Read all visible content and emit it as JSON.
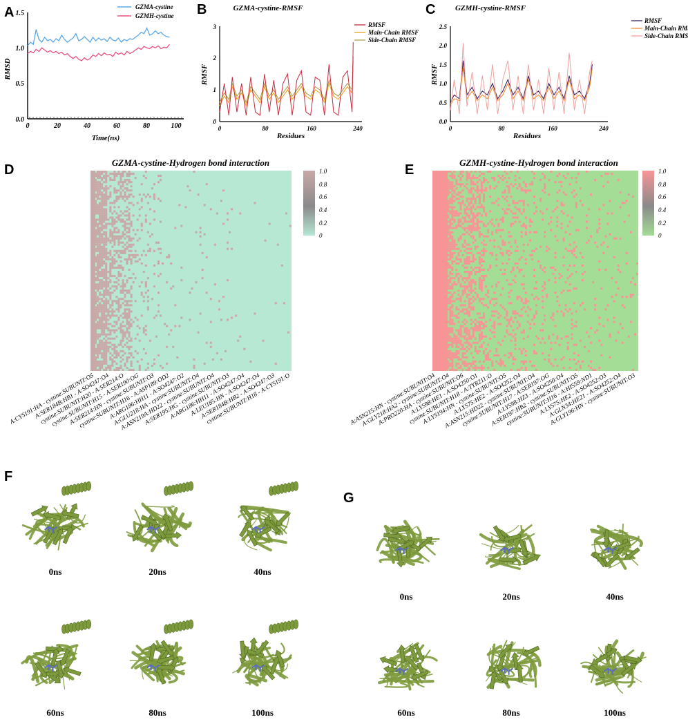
{
  "panels": {
    "A": "A",
    "B": "B",
    "C": "C",
    "D": "D",
    "E": "E",
    "F": "F",
    "G": "G"
  },
  "colors": {
    "gzma_line": "#5aa8e8",
    "gzmh_line": "#e8507e",
    "rmsf_b": "#c8283c",
    "main_b": "#f0a020",
    "side_b": "#b0a050",
    "rmsf_c": "#3a2060",
    "main_c": "#f09030",
    "side_c": "#f0a0a0",
    "hb_d_on": "#c9a8a8",
    "hb_d_off": "#b6e8d4",
    "hb_e_on": "#f79596",
    "hb_e_off": "#a4dd96",
    "protein": "#7d9a3c",
    "ligand": "#5c6cc4"
  },
  "chart_data": [
    {
      "id": "A",
      "type": "line",
      "title": "",
      "xlabel": "Time(ns)",
      "ylabel": "RMSD",
      "xlim": [
        0,
        110
      ],
      "ylim": [
        0,
        1.5
      ],
      "xticks": [
        "0",
        "20",
        "40",
        "60",
        "80",
        "100"
      ],
      "yticks": [
        "0.0",
        "0.5",
        "1.0",
        "1.5"
      ],
      "legend": [
        "GZMA-cystine",
        "GZMH-cystine"
      ],
      "series": [
        {
          "name": "GZMA-cystine",
          "x": [
            0,
            2,
            4,
            6,
            8,
            10,
            12,
            14,
            16,
            18,
            20,
            22,
            24,
            26,
            28,
            30,
            32,
            34,
            36,
            38,
            40,
            42,
            44,
            46,
            48,
            50,
            52,
            54,
            56,
            58,
            60,
            62,
            64,
            66,
            68,
            70,
            72,
            74,
            76,
            78,
            80,
            82,
            84,
            86,
            88,
            90,
            92,
            94,
            96,
            98,
            100
          ],
          "values": [
            1.03,
            1.08,
            1.05,
            1.26,
            1.12,
            1.08,
            1.15,
            1.1,
            1.12,
            1.08,
            1.13,
            1.1,
            1.18,
            1.12,
            1.08,
            1.11,
            1.14,
            1.2,
            1.1,
            1.12,
            1.16,
            1.12,
            1.08,
            1.15,
            1.1,
            1.14,
            1.11,
            1.13,
            1.09,
            1.15,
            1.11,
            1.1,
            1.14,
            1.08,
            1.12,
            1.1,
            1.13,
            1.12,
            1.15,
            1.18,
            1.22,
            1.2,
            1.28,
            1.18,
            1.2,
            1.24,
            1.2,
            1.22,
            1.18,
            1.16,
            1.15
          ]
        },
        {
          "name": "GZMH-cystine",
          "x": [
            0,
            2,
            4,
            6,
            8,
            10,
            12,
            14,
            16,
            18,
            20,
            22,
            24,
            26,
            28,
            30,
            32,
            34,
            36,
            38,
            40,
            42,
            44,
            46,
            48,
            50,
            52,
            54,
            56,
            58,
            60,
            62,
            64,
            66,
            68,
            70,
            72,
            74,
            76,
            78,
            80,
            82,
            84,
            86,
            88,
            90,
            92,
            94,
            96,
            98,
            100
          ],
          "values": [
            0.92,
            0.95,
            0.93,
            0.98,
            0.95,
            1.0,
            0.97,
            0.94,
            0.96,
            0.93,
            0.95,
            0.92,
            0.94,
            0.9,
            0.92,
            0.88,
            0.85,
            0.88,
            0.84,
            0.82,
            0.86,
            0.83,
            0.85,
            0.9,
            0.88,
            0.92,
            0.89,
            0.93,
            0.9,
            0.91,
            0.88,
            0.94,
            0.91,
            0.93,
            0.9,
            0.95,
            0.92,
            0.94,
            0.97,
            1.0,
            0.98,
            1.02,
            1.0,
            0.99,
            1.02,
            1.0,
            1.03,
            0.99,
            1.01,
            1.0,
            1.05
          ]
        }
      ]
    },
    {
      "id": "B",
      "type": "line",
      "title": "GZMA-cystine-RMSF",
      "xlabel": "Residues",
      "ylabel": "RMSF",
      "xlim": [
        0,
        240
      ],
      "ylim": [
        0,
        3
      ],
      "xticks": [
        "0",
        "80",
        "160",
        "240"
      ],
      "yticks": [
        "0",
        "1",
        "2",
        "3"
      ],
      "legend": [
        "RMSF",
        "Main-Chain RMSF",
        "Side-Chain RMSF"
      ],
      "series": [
        {
          "name": "RMSF",
          "x": [
            0,
            8,
            16,
            22,
            30,
            38,
            46,
            54,
            62,
            70,
            78,
            86,
            94,
            102,
            110,
            118,
            126,
            134,
            142,
            150,
            158,
            166,
            174,
            182,
            190,
            198,
            206,
            214,
            222,
            230,
            232
          ],
          "values": [
            0.6,
            0.9,
            0.7,
            1.2,
            0.8,
            1.0,
            0.6,
            1.1,
            0.9,
            0.7,
            1.2,
            0.8,
            1.0,
            0.7,
            0.9,
            1.1,
            0.8,
            1.0,
            1.2,
            0.9,
            0.8,
            1.1,
            1.0,
            0.7,
            1.3,
            0.9,
            0.8,
            1.0,
            1.2,
            1.0,
            2.05
          ]
        },
        {
          "name": "Main-Chain RMSF",
          "x": [
            0,
            8,
            16,
            22,
            30,
            38,
            46,
            54,
            62,
            70,
            78,
            86,
            94,
            102,
            110,
            118,
            126,
            134,
            142,
            150,
            158,
            166,
            174,
            182,
            190,
            198,
            206,
            214,
            222,
            230,
            232
          ],
          "values": [
            0.5,
            0.8,
            0.6,
            1.1,
            0.7,
            0.9,
            0.5,
            1.0,
            0.8,
            0.6,
            1.1,
            0.7,
            0.9,
            0.6,
            0.8,
            1.0,
            0.7,
            0.9,
            1.1,
            0.8,
            0.7,
            1.0,
            0.9,
            0.6,
            1.2,
            0.8,
            0.7,
            0.9,
            1.1,
            0.9,
            1.9
          ]
        },
        {
          "name": "Side-Chain RMSF",
          "x": [
            0,
            8,
            16,
            22,
            30,
            38,
            46,
            54,
            62,
            70,
            78,
            86,
            94,
            102,
            110,
            118,
            126,
            134,
            142,
            150,
            158,
            166,
            174,
            182,
            190,
            198,
            206,
            214,
            222,
            230,
            232
          ],
          "values": [
            0.3,
            1.2,
            0.2,
            1.4,
            0.3,
            1.2,
            0.2,
            1.4,
            0.3,
            0.2,
            1.5,
            0.3,
            1.3,
            0.2,
            1.2,
            1.5,
            0.2,
            1.3,
            1.6,
            0.3,
            0.2,
            1.4,
            1.3,
            0.2,
            1.8,
            0.3,
            0.2,
            1.4,
            1.6,
            0.3,
            2.5
          ]
        }
      ]
    },
    {
      "id": "C",
      "type": "line",
      "title": "GZMH-cystine-RMSF",
      "xlabel": "Residues",
      "ylabel": "RMSF",
      "xlim": [
        0,
        240
      ],
      "ylim": [
        0,
        2.5
      ],
      "xticks": [
        "0",
        "80",
        "160",
        "240"
      ],
      "yticks": [
        "0.0",
        "0.5",
        "1.0",
        "1.5",
        "2.0",
        "2.5"
      ],
      "legend": [
        "RMSF",
        "Main-Chain RMSF",
        "Side-Chain RMSF"
      ],
      "series": [
        {
          "name": "RMSF",
          "x": [
            0,
            6,
            14,
            20,
            26,
            34,
            42,
            50,
            58,
            66,
            74,
            82,
            90,
            98,
            106,
            114,
            122,
            130,
            138,
            146,
            154,
            162,
            170,
            178,
            186,
            194,
            202,
            210,
            218,
            222
          ],
          "values": [
            0.5,
            0.7,
            0.6,
            1.6,
            0.7,
            0.9,
            0.6,
            0.8,
            0.7,
            1.0,
            0.6,
            0.8,
            1.1,
            0.7,
            0.9,
            0.6,
            1.2,
            0.7,
            0.8,
            0.6,
            1.0,
            0.7,
            0.9,
            0.6,
            1.2,
            0.7,
            0.8,
            0.6,
            1.0,
            1.5
          ]
        },
        {
          "name": "Main-Chain RMSF",
          "x": [
            0,
            6,
            14,
            20,
            26,
            34,
            42,
            50,
            58,
            66,
            74,
            82,
            90,
            98,
            106,
            114,
            122,
            130,
            138,
            146,
            154,
            162,
            170,
            178,
            186,
            194,
            202,
            210,
            218,
            222
          ],
          "values": [
            0.45,
            0.6,
            0.55,
            1.4,
            0.6,
            0.8,
            0.55,
            0.7,
            0.6,
            0.9,
            0.55,
            0.7,
            1.0,
            0.6,
            0.8,
            0.55,
            1.1,
            0.6,
            0.7,
            0.55,
            0.9,
            0.6,
            0.8,
            0.55,
            1.1,
            0.6,
            0.7,
            0.55,
            0.9,
            1.4
          ]
        },
        {
          "name": "Side-Chain RMSF",
          "x": [
            0,
            6,
            14,
            20,
            26,
            34,
            42,
            50,
            58,
            66,
            74,
            82,
            90,
            98,
            106,
            114,
            122,
            130,
            138,
            146,
            154,
            162,
            170,
            178,
            186,
            194,
            202,
            210,
            218,
            222
          ],
          "values": [
            0.3,
            1.1,
            0.2,
            2.05,
            0.4,
            1.3,
            0.2,
            1.2,
            0.3,
            1.5,
            0.2,
            1.1,
            1.6,
            0.3,
            1.2,
            0.2,
            1.5,
            0.3,
            1.1,
            0.2,
            1.4,
            0.3,
            1.3,
            0.2,
            1.8,
            0.3,
            1.1,
            0.2,
            1.3,
            1.6
          ]
        }
      ]
    },
    {
      "id": "D",
      "type": "heatmap",
      "title": "GZMA-cystine-Hydrogen bond interaction",
      "colorbar_ticks": [
        "1.0",
        "0.8",
        "0.6",
        "0.4",
        "0.2",
        "0"
      ],
      "vrange": [
        0,
        1
      ],
      "labels": [
        "A:CYS191:HA - cystine:SUBUNIT:O5",
        "A:SER184B:HB1 - A:SO4247:O4",
        "cystine:SUBUNIT:H20 - A:SER214:O",
        "cystine:SUBUNIT:H15 - A:SER190:OG",
        "A:SER214:HN - cystine:SUBUNIT:O3",
        "cystine:SUBUNIT:H16 - A:ASP189:OD2",
        "A:ARG186:HH11 - A:SO4247:O2",
        "A:GLU218:HA - cystine:SUBUNIT:O4",
        "A:ASN219A:HD22 - cystine:SUBUNIT:O4",
        "A:SER195:HG - cystine:SUBUNIT:O3",
        "A:ARG186:HH11 - A:SO4247:O4",
        "A:LEU185:HN - A:SO4247:O4",
        "A:SER184B:HB2 - A:SO4247:O3",
        "cystine:SUBUNIT:H18 - A:CYS191:O"
      ]
    },
    {
      "id": "E",
      "type": "heatmap",
      "title": "GZMH-cystine-Hydrogen bond interaction",
      "colorbar_ticks": [
        "1.0",
        "0.8",
        "0.6",
        "0.4",
        "0.2",
        "0"
      ],
      "vrange": [
        0,
        1
      ],
      "labels": [
        "A:ASN215:HN - cystine:SUBUNIT:O4",
        "A:GLY218:HA2 - cystine:SUBUNIT:O4",
        "A:PRO220:HA - cystine:SUBUNIT:O6",
        "A:LYS98:HE1 - A:SO4250:O1",
        "cystine:SUBUNIT:H18 - A:TYR211:O",
        "A:LYS194:HN - cystine:SUBUNIT:O5",
        "A:LYS75:HE2 - A:SO4252:O4",
        "A:ASN215:HD22 - cystine:SUBUNIT:O4",
        "cystine:SUBUNIT:H17 - A:SER197:OG",
        "A:LYS98:HZ3 - A:SO4250:O4",
        "A:SER197:HB2 - cystine:SUBUNIT:O5",
        "cystine:SUBUNIT:H16 - A:HIS59:ND1",
        "A:LYS75:HE2 - A:SO4252:O3",
        "A:GLN34:HE21 - A:SO4252:O4",
        "A:GLY196:HN - cystine:SUBUNIT:O3"
      ]
    }
  ],
  "snapshots_F": [
    "0ns",
    "20ns",
    "40ns",
    "60ns",
    "80ns",
    "100ns"
  ],
  "snapshots_G": [
    "0ns",
    "20ns",
    "40ns",
    "60ns",
    "80ns",
    "100ns"
  ]
}
